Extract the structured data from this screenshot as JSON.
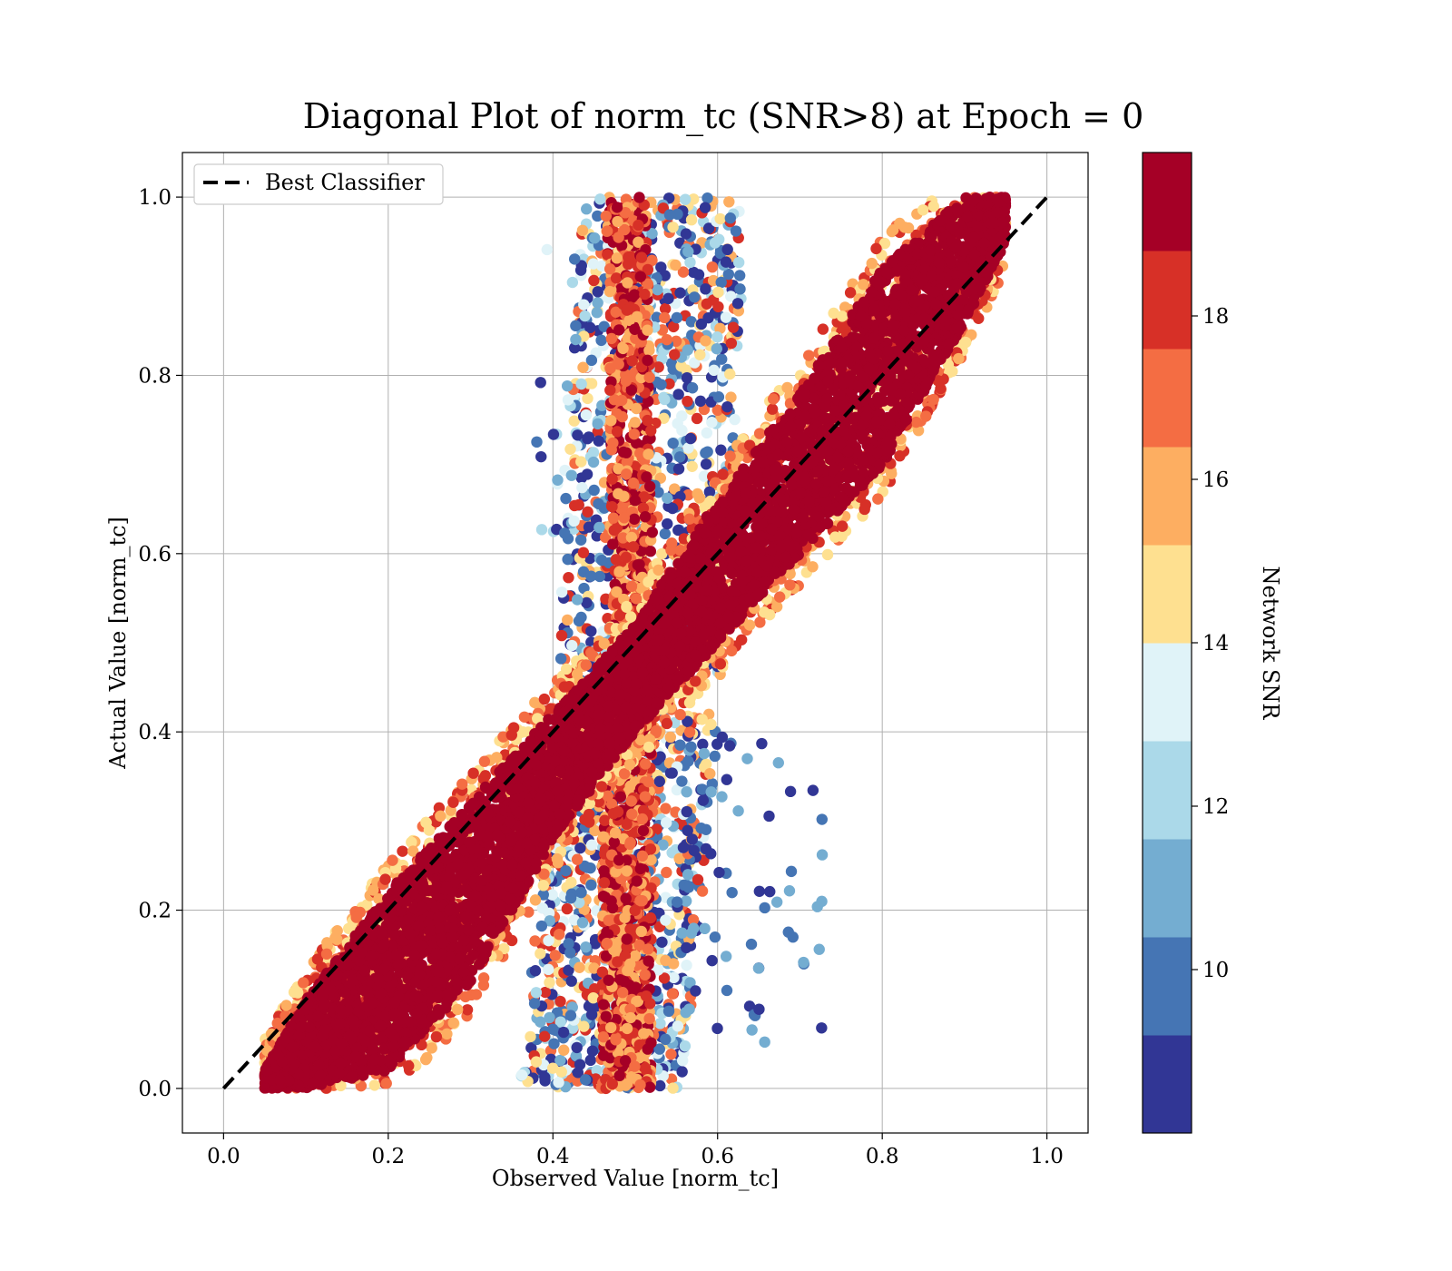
{
  "chart_data": {
    "type": "scatter",
    "title": "Diagonal Plot of norm_tc (SNR>8) at Epoch = 0",
    "xlabel": "Observed Value [norm_tc]",
    "ylabel": "Actual Value [norm_tc]",
    "xlim": [
      -0.05,
      1.05
    ],
    "ylim": [
      -0.05,
      1.05
    ],
    "x_ticks": [
      "0.0",
      "0.2",
      "0.4",
      "0.6",
      "0.8",
      "1.0"
    ],
    "y_ticks": [
      "0.0",
      "0.2",
      "0.4",
      "0.6",
      "0.8",
      "1.0"
    ],
    "grid": true,
    "legend": {
      "placement": "top-left",
      "entries": [
        "Best Classifier"
      ]
    },
    "reference_line": {
      "name": "Best Classifier",
      "style": "dashed",
      "color": "#000000",
      "x": [
        0,
        1
      ],
      "y": [
        0,
        1
      ]
    },
    "colorbar": {
      "label": "Network SNR",
      "range": [
        8,
        20
      ],
      "tick_labels": [
        "10",
        "12",
        "14",
        "16",
        "18"
      ],
      "tick_values": [
        10,
        12,
        14,
        16,
        18
      ],
      "colors": [
        "#313695",
        "#4575b4",
        "#74add1",
        "#abd9e9",
        "#e0f3f8",
        "#fee090",
        "#fdae61",
        "#f46d43",
        "#d73027",
        "#a50026"
      ]
    },
    "series": [
      {
        "description_of_distribution": "dense band",
        "band": [
          {
            "x": 0.05,
            "y_low": 0.0,
            "y_high": 0.02
          },
          {
            "x": 0.1,
            "y_low": 0.0,
            "y_high": 0.1
          },
          {
            "x": 0.2,
            "y_low": 0.02,
            "y_high": 0.22
          },
          {
            "x": 0.3,
            "y_low": 0.12,
            "y_high": 0.32
          },
          {
            "x": 0.4,
            "y_low": 0.28,
            "y_high": 0.42
          },
          {
            "x": 0.5,
            "y_low": 0.4,
            "y_high": 0.52
          },
          {
            "x": 0.6,
            "y_low": 0.5,
            "y_high": 0.66
          },
          {
            "x": 0.7,
            "y_low": 0.6,
            "y_high": 0.78
          },
          {
            "x": 0.8,
            "y_low": 0.7,
            "y_high": 0.92
          },
          {
            "x": 0.9,
            "y_low": 0.86,
            "y_high": 1.0
          },
          {
            "x": 0.95,
            "y_low": 0.95,
            "y_high": 1.0
          }
        ]
      }
    ]
  }
}
